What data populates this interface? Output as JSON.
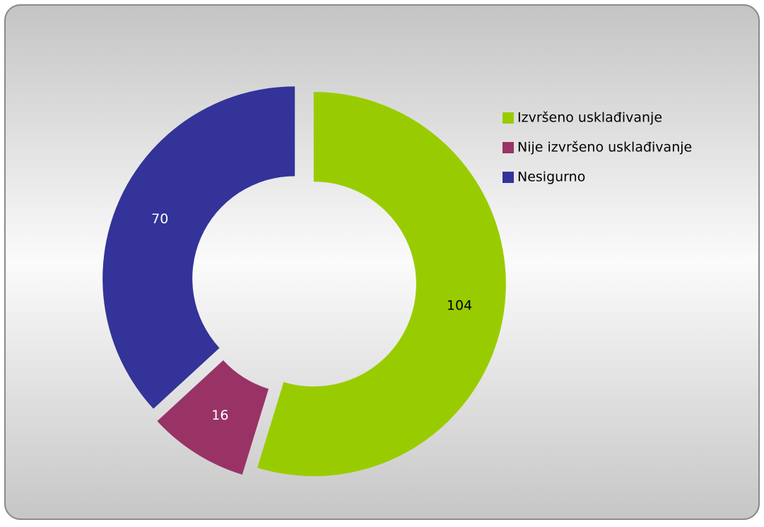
{
  "chart_data": {
    "type": "donut",
    "categories": [
      "Izvršeno usklađivanje",
      "Nije izvršeno usklađivanje",
      "Nesigurno"
    ],
    "values": [
      104,
      16,
      70
    ],
    "colors": [
      "#99cc00",
      "#993366",
      "#333399"
    ],
    "legend": "right"
  }
}
